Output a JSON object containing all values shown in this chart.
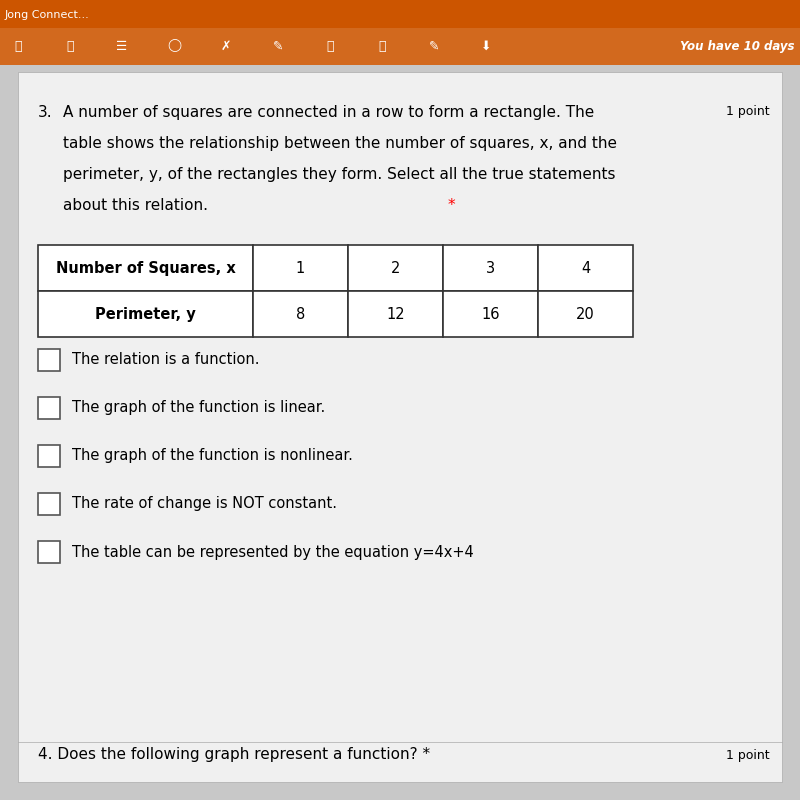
{
  "header_bar_color": "#CC5500",
  "header_text": "Jong Connect...",
  "toolbar_color": "#D2691E",
  "toolbar_right_text": "You have 10 days",
  "bg_color": "#C8C8C8",
  "content_bg": "#E8E8E8",
  "question_number": "3.",
  "question_text": "A number of squares are connected in a row to form a rectangle. The\ntable shows the relationship between the number of squares, x, and the\nperimeter, y, of the rectangles they form. Select all the true statements\nabout this relation.",
  "question_star": "*",
  "point_label": "1 point",
  "table_header_row": [
    "Number of Squares, x",
    "1",
    "2",
    "3",
    "4"
  ],
  "table_data_row": [
    "Perimeter, y",
    "8",
    "12",
    "16",
    "20"
  ],
  "table_border_color": "#333333",
  "table_header_fill": "#FFFFFF",
  "table_data_fill": "#FFFFFF",
  "choices": [
    "The relation is a function.",
    "The graph of the function is linear.",
    "The graph of the function is nonlinear.",
    "The rate of change is NOT constant.",
    "The table can be represented by the equation y=4x+4"
  ],
  "footer_text": "4. Does the following graph represent a function?",
  "footer_star": "*",
  "footer_point": "1 point",
  "checkbox_color": "#FFFFFF",
  "checkbox_border": "#555555",
  "text_color": "#000000",
  "label_fontsize": 11,
  "choice_fontsize": 10.5
}
